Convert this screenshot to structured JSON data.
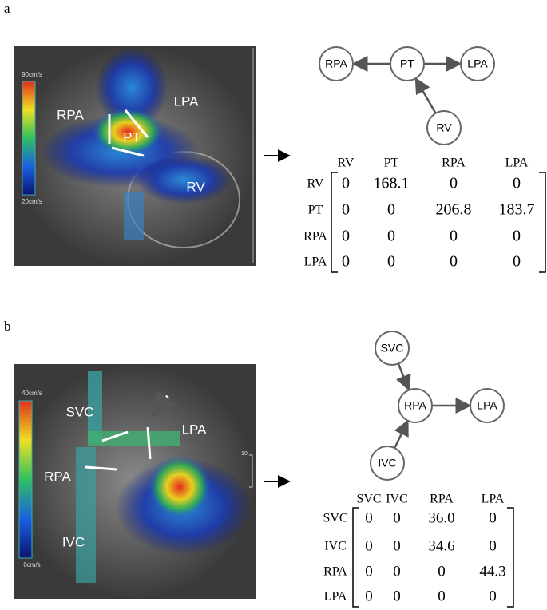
{
  "panels": [
    {
      "label": "a",
      "image": {
        "labels": [
          "RPA",
          "LPA",
          "PT",
          "RV"
        ],
        "scale": [
          "90cm/s",
          "20cm/s"
        ]
      },
      "graph": {
        "nodes": [
          "RPA",
          "PT",
          "LPA",
          "RV"
        ]
      },
      "matrix": {
        "columns": [
          "RV",
          "PT",
          "RPA",
          "LPA"
        ],
        "rows": [
          {
            "label": "RV",
            "cells": [
              "0",
              "168.1",
              "0",
              "0"
            ]
          },
          {
            "label": "PT",
            "cells": [
              "0",
              "0",
              "206.8",
              "183.7"
            ]
          },
          {
            "label": "RPA",
            "cells": [
              "0",
              "0",
              "0",
              "0"
            ]
          },
          {
            "label": "LPA",
            "cells": [
              "0",
              "0",
              "0",
              "0"
            ]
          }
        ]
      }
    },
    {
      "label": "b",
      "image": {
        "labels": [
          "SVC",
          "LPA",
          "RPA",
          "IVC"
        ],
        "scale": [
          "40cm/s",
          "0cm/s"
        ],
        "ruler": [
          "10"
        ]
      },
      "graph": {
        "nodes": [
          "SVC",
          "RPA",
          "LPA",
          "IVC"
        ]
      },
      "matrix": {
        "columns": [
          "SVC",
          "IVC",
          "RPA",
          "LPA"
        ],
        "rows": [
          {
            "label": "SVC",
            "cells": [
              "0",
              "0",
              "36.0",
              "0"
            ]
          },
          {
            "label": "IVC",
            "cells": [
              "0",
              "0",
              "34.6",
              "0"
            ]
          },
          {
            "label": "RPA",
            "cells": [
              "0",
              "0",
              "0",
              "44.3"
            ]
          },
          {
            "label": "LPA",
            "cells": [
              "0",
              "0",
              "0",
              "0"
            ]
          }
        ]
      }
    }
  ]
}
